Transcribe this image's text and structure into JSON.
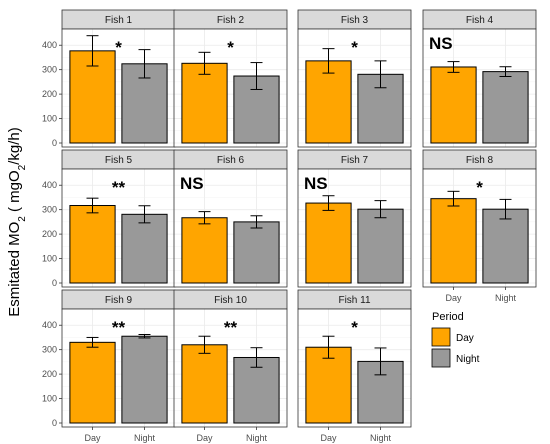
{
  "chart_data": {
    "type": "bar",
    "ylabel": {
      "main": "Esmitated MO",
      "sub": "2",
      "rest1": " ( mgO",
      "sub2": "2",
      "rest2": "/kg/h)"
    },
    "categories": [
      "Day",
      "Night"
    ],
    "ylim": [
      0,
      450
    ],
    "yticks": [
      0,
      100,
      200,
      300,
      400
    ],
    "grid": true,
    "legend": {
      "title": "Period",
      "position": "bottom-right",
      "items": [
        {
          "label": "Day",
          "color": "#FFA500"
        },
        {
          "label": "Night",
          "color": "#999999"
        }
      ]
    },
    "panels": [
      {
        "title": "Fish 1",
        "sig": "*",
        "day": {
          "mean": 377,
          "err": 62
        },
        "night": {
          "mean": 324,
          "err": 58
        }
      },
      {
        "title": "Fish 2",
        "sig": "*",
        "day": {
          "mean": 326,
          "err": 45
        },
        "night": {
          "mean": 274,
          "err": 55
        }
      },
      {
        "title": "Fish 3",
        "sig": "*",
        "day": {
          "mean": 336,
          "err": 50
        },
        "night": {
          "mean": 281,
          "err": 55
        }
      },
      {
        "title": "Fish 4",
        "sig": "NS",
        "day": {
          "mean": 311,
          "err": 22
        },
        "night": {
          "mean": 292,
          "err": 20
        }
      },
      {
        "title": "Fish 5",
        "sig": "**",
        "day": {
          "mean": 317,
          "err": 30
        },
        "night": {
          "mean": 281,
          "err": 35
        }
      },
      {
        "title": "Fish 6",
        "sig": "NS",
        "day": {
          "mean": 267,
          "err": 25
        },
        "night": {
          "mean": 250,
          "err": 25
        }
      },
      {
        "title": "Fish 7",
        "sig": "NS",
        "day": {
          "mean": 327,
          "err": 30
        },
        "night": {
          "mean": 302,
          "err": 35
        }
      },
      {
        "title": "Fish 8",
        "sig": "*",
        "day": {
          "mean": 345,
          "err": 30
        },
        "night": {
          "mean": 302,
          "err": 40
        }
      },
      {
        "title": "Fish 9",
        "sig": "**",
        "day": {
          "mean": 330,
          "err": 20
        },
        "night": {
          "mean": 355,
          "err": 7
        }
      },
      {
        "title": "Fish 10",
        "sig": "**",
        "day": {
          "mean": 320,
          "err": 35
        },
        "night": {
          "mean": 268,
          "err": 40
        }
      },
      {
        "title": "Fish 11",
        "sig": "*",
        "day": {
          "mean": 310,
          "err": 45
        },
        "night": {
          "mean": 252,
          "err": 55
        }
      }
    ]
  }
}
